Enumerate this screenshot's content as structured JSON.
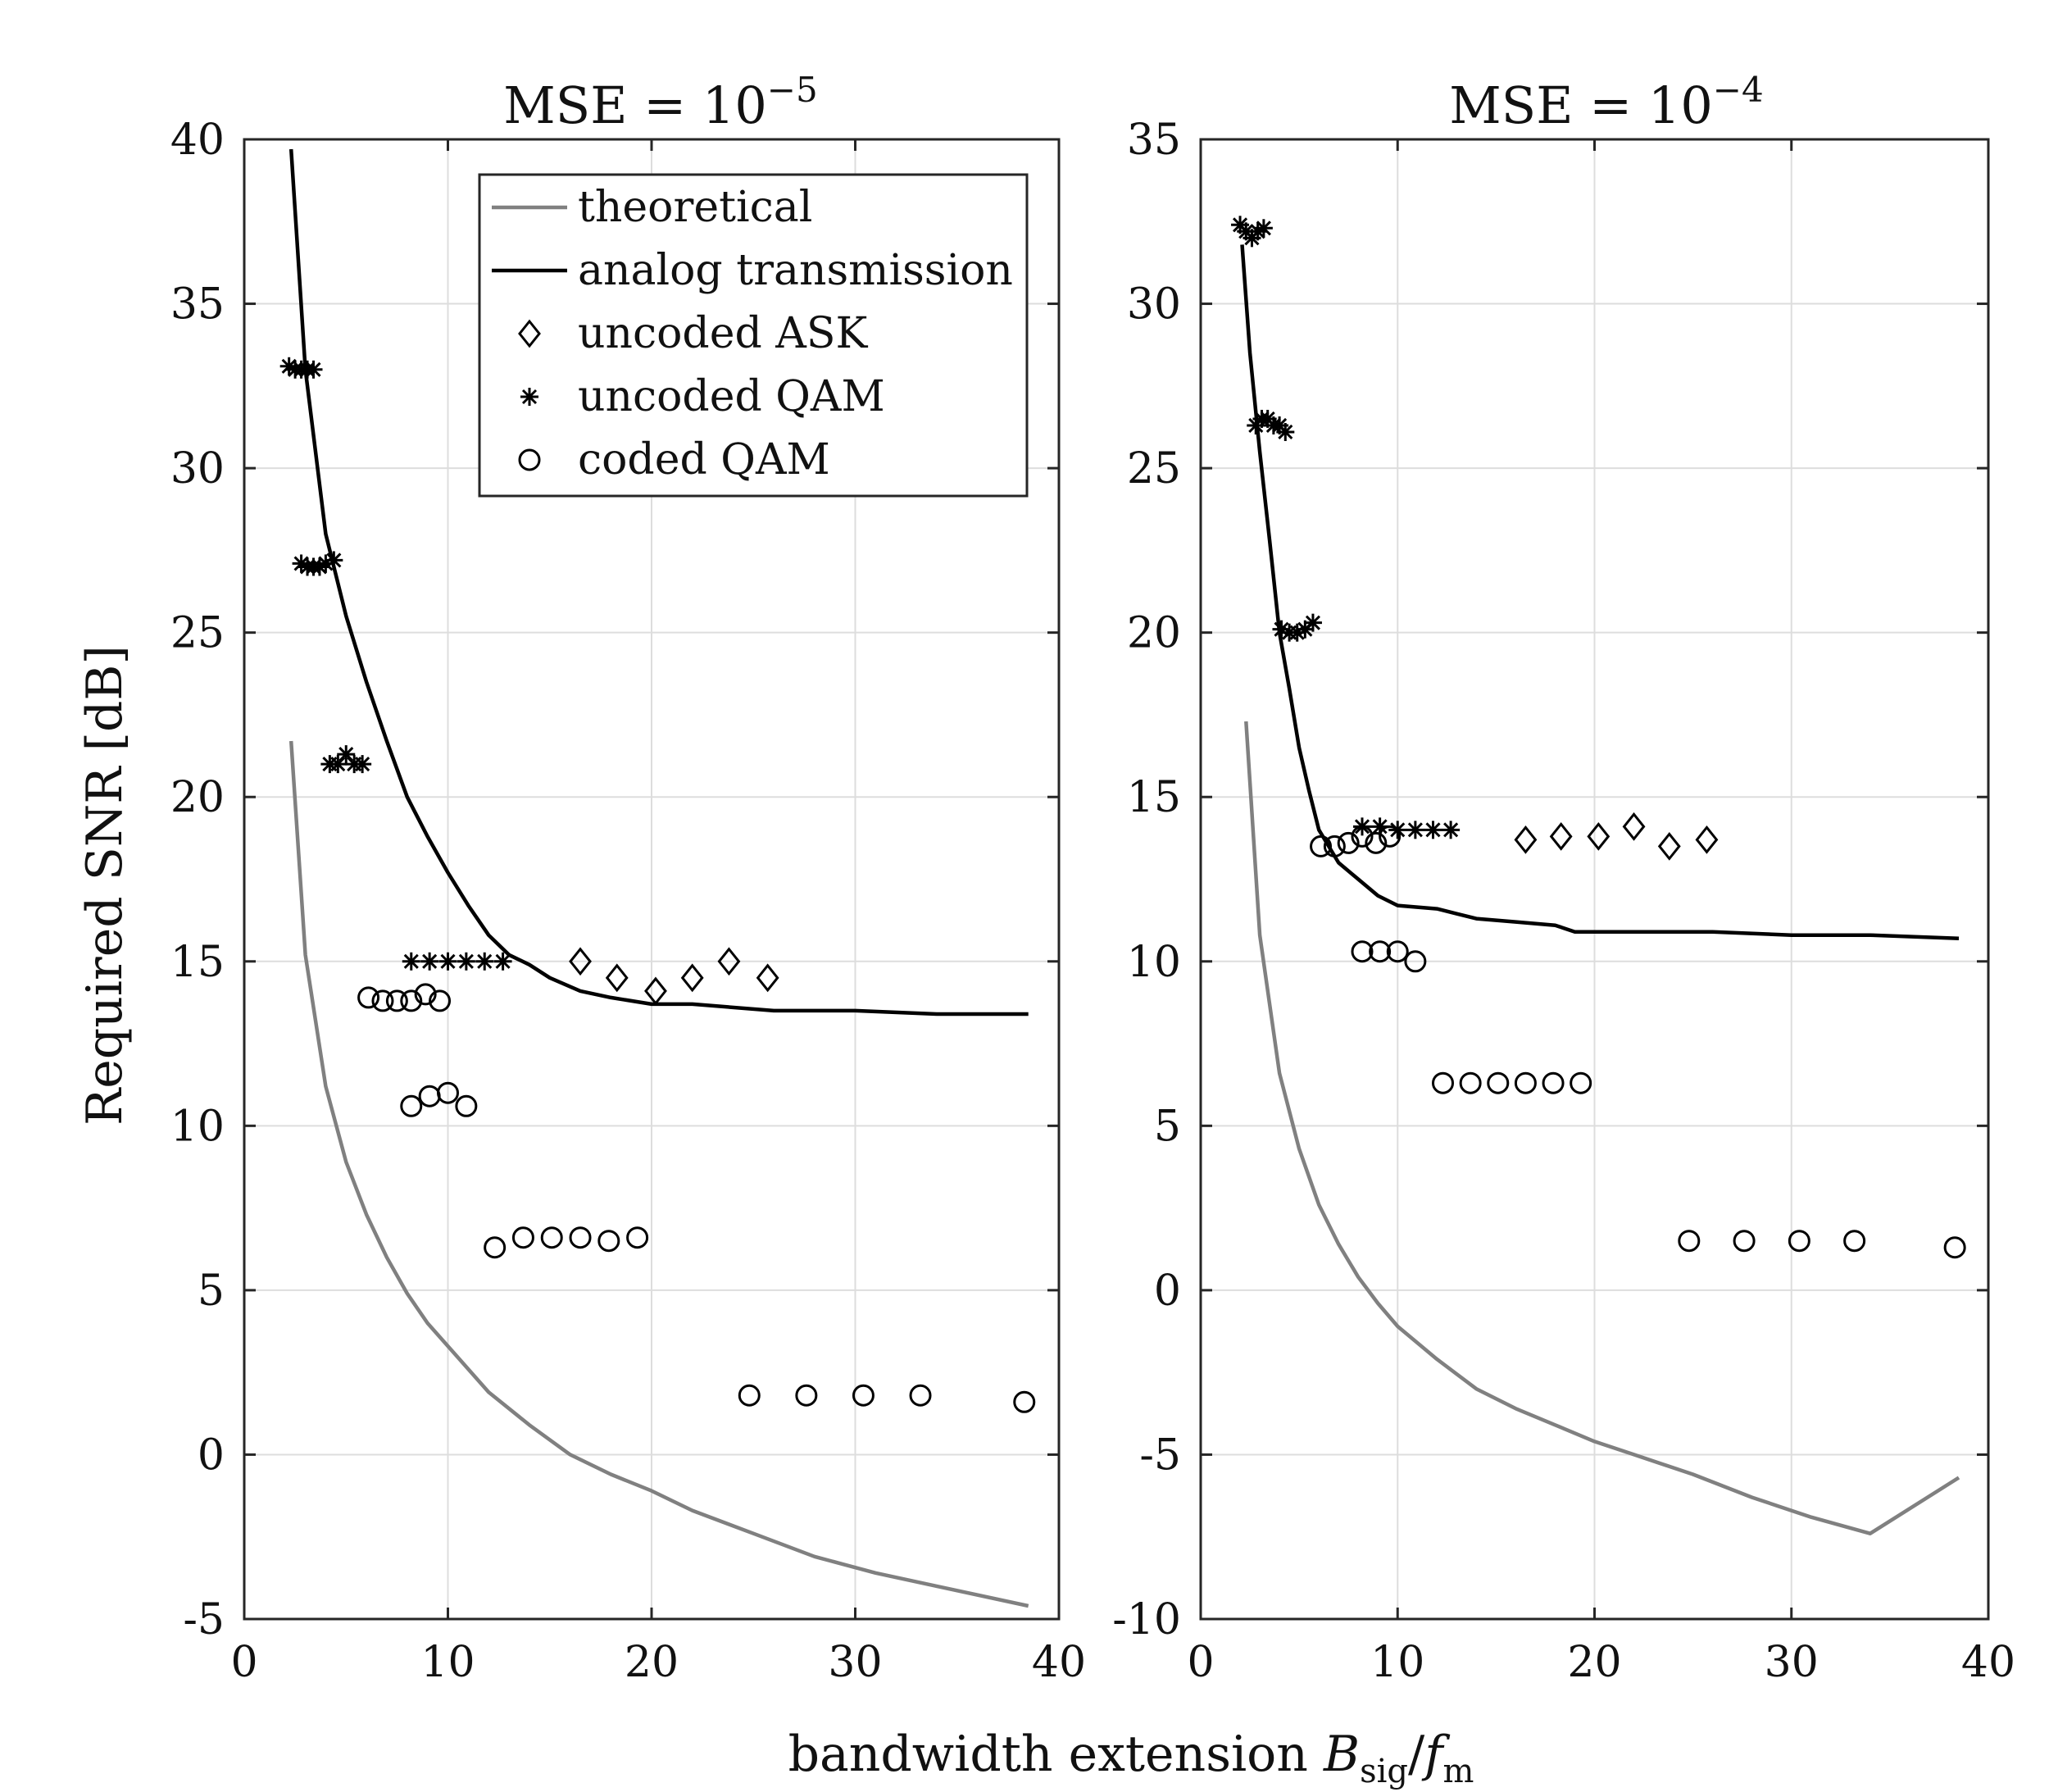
{
  "figure": {
    "ylabel": "Required SNR [dB]",
    "xlabel": "bandwidth extension ",
    "xlabel_math": {
      "var": "B",
      "sub1": "sig",
      "slash": "/",
      "var2": "f",
      "sub2": "m"
    }
  },
  "legend": {
    "theoretical": "theoretical",
    "analog": "analog transmission",
    "ask": "uncoded ASK",
    "uqam": "uncoded QAM",
    "cqam": "coded QAM"
  },
  "colors": {
    "theoretical": "#808080",
    "analog": "#000000",
    "grid": "#dddddd",
    "axes": "#262626"
  },
  "chart_data": [
    {
      "type": "line+scatter",
      "title_base": "MSE = 10",
      "title_exp": "−5",
      "xlim": [
        0,
        40
      ],
      "ylim": [
        -5,
        40
      ],
      "xticks": [
        0,
        10,
        20,
        30,
        40
      ],
      "yticks": [
        -5,
        0,
        5,
        10,
        15,
        20,
        25,
        30,
        35,
        40
      ],
      "ytick_labels": [
        "-5",
        "0",
        "5",
        "10",
        "15",
        "20",
        "25",
        "30",
        "35",
        "40"
      ],
      "grid": true,
      "legend_position": "top-right",
      "theoretical": {
        "x": [
          2.3,
          3,
          4,
          5,
          6,
          7,
          8,
          9,
          10,
          12,
          14,
          16,
          18,
          20,
          22,
          25,
          28,
          31,
          34,
          38.5
        ],
        "y": [
          21.7,
          15.2,
          11.2,
          8.9,
          7.3,
          6.0,
          4.9,
          4.0,
          3.3,
          1.9,
          0.9,
          0.0,
          -0.6,
          -1.1,
          -1.7,
          -2.4,
          -3.1,
          -3.6,
          -4.0,
          -4.6
        ]
      },
      "analog": {
        "x": [
          2.3,
          3,
          4,
          5,
          6,
          7,
          8,
          9,
          10,
          11,
          12,
          13,
          14,
          15,
          16.5,
          18,
          20,
          22,
          26,
          30,
          34,
          38.5
        ],
        "y": [
          39.7,
          33.0,
          28.0,
          25.5,
          23.5,
          21.7,
          20.0,
          18.8,
          17.7,
          16.7,
          15.8,
          15.2,
          14.9,
          14.5,
          14.1,
          13.9,
          13.7,
          13.7,
          13.5,
          13.5,
          13.4,
          13.4
        ]
      },
      "uncoded_ask": {
        "x": [
          16.5,
          18.3,
          20.2,
          22,
          23.8,
          25.7
        ],
        "y": [
          15.0,
          14.5,
          14.1,
          14.5,
          15.0,
          14.5
        ]
      },
      "uncoded_qam": {
        "x": [
          2.2,
          2.5,
          2.8,
          3.1,
          3.4,
          2.8,
          3.1,
          3.4,
          3.7,
          4.0,
          4.4,
          4.2,
          4.6,
          5.0,
          5.4,
          5.8,
          8.2,
          9.1,
          10.0,
          10.9,
          11.8,
          12.7
        ],
        "y": [
          33.1,
          33.0,
          33.0,
          33.0,
          33.0,
          27.1,
          27.0,
          27.0,
          27.0,
          27.1,
          27.2,
          21.0,
          21.0,
          21.3,
          21.0,
          21.0,
          15.0,
          15.0,
          15.0,
          15.0,
          15.0,
          15.0
        ]
      },
      "coded_qam": {
        "x": [
          6.1,
          6.8,
          7.5,
          8.2,
          8.9,
          9.6,
          8.2,
          9.1,
          10.0,
          10.9,
          12.3,
          13.7,
          15.1,
          16.5,
          17.9,
          19.3,
          24.8,
          27.6,
          30.4,
          33.2,
          38.3
        ],
        "y": [
          13.9,
          13.8,
          13.8,
          13.8,
          14.0,
          13.8,
          10.6,
          10.9,
          11.0,
          10.6,
          6.3,
          6.6,
          6.6,
          6.6,
          6.5,
          6.6,
          1.8,
          1.8,
          1.8,
          1.8,
          1.6
        ]
      }
    },
    {
      "type": "line+scatter",
      "title_base": "MSE = 10",
      "title_exp": "−4",
      "xlim": [
        0,
        40
      ],
      "ylim": [
        -10,
        35
      ],
      "xticks": [
        0,
        10,
        20,
        30,
        40
      ],
      "yticks": [
        -10,
        -5,
        0,
        5,
        10,
        15,
        20,
        25,
        30,
        35
      ],
      "ytick_labels": [
        "-10",
        "-5",
        "0",
        "5",
        "10",
        "15",
        "20",
        "25",
        "30",
        "35"
      ],
      "grid": true,
      "theoretical": {
        "x": [
          2.3,
          3,
          4,
          5,
          6,
          7,
          8,
          9,
          10,
          12,
          14,
          16,
          18,
          20,
          22,
          25,
          28,
          31,
          34,
          38.5
        ],
        "y": [
          17.3,
          10.8,
          6.6,
          4.3,
          2.6,
          1.4,
          0.4,
          -0.4,
          -1.1,
          -2.1,
          -3.0,
          -3.6,
          -4.1,
          -4.6,
          -5.0,
          -5.6,
          -6.3,
          -6.9,
          -7.4,
          -5.7
        ]
      },
      "analog": {
        "x": [
          2.1,
          2.5,
          3,
          3.5,
          4,
          4.5,
          5,
          5.5,
          6,
          7,
          8,
          9,
          10,
          12,
          14,
          16,
          18,
          19,
          22,
          26,
          30,
          34,
          38.5
        ],
        "y": [
          31.8,
          28.5,
          25.5,
          22.8,
          20.0,
          18.3,
          16.5,
          15.2,
          14.0,
          13.0,
          12.5,
          12.0,
          11.7,
          11.6,
          11.3,
          11.2,
          11.1,
          10.9,
          10.9,
          10.9,
          10.8,
          10.8,
          10.7
        ]
      },
      "uncoded_ask": {
        "x": [
          16.5,
          18.3,
          20.2,
          22,
          23.8,
          25.7
        ],
        "y": [
          13.7,
          13.8,
          13.8,
          14.1,
          13.5,
          13.7
        ]
      },
      "uncoded_qam": {
        "x": [
          2.0,
          2.3,
          2.6,
          2.9,
          3.2,
          2.8,
          3.1,
          3.4,
          3.7,
          4.0,
          4.3,
          4.1,
          4.5,
          4.9,
          5.3,
          5.7,
          8.2,
          9.1,
          10.0,
          10.9,
          11.8,
          12.7
        ],
        "y": [
          32.4,
          32.2,
          32.0,
          32.2,
          32.3,
          26.3,
          26.5,
          26.5,
          26.3,
          26.3,
          26.1,
          20.1,
          20.0,
          20.0,
          20.1,
          20.3,
          14.1,
          14.1,
          14.0,
          14.0,
          14.0,
          14.0
        ]
      },
      "coded_qam": {
        "x": [
          6.1,
          6.8,
          7.5,
          8.2,
          8.9,
          9.6,
          8.2,
          9.1,
          10.0,
          10.9,
          12.3,
          13.7,
          15.1,
          16.5,
          17.9,
          19.3,
          24.8,
          27.6,
          30.4,
          33.2,
          38.3
        ],
        "y": [
          13.5,
          13.5,
          13.6,
          13.8,
          13.6,
          13.8,
          10.3,
          10.3,
          10.3,
          10.0,
          6.3,
          6.3,
          6.3,
          6.3,
          6.3,
          6.3,
          1.5,
          1.5,
          1.5,
          1.5,
          1.3
        ]
      }
    }
  ]
}
